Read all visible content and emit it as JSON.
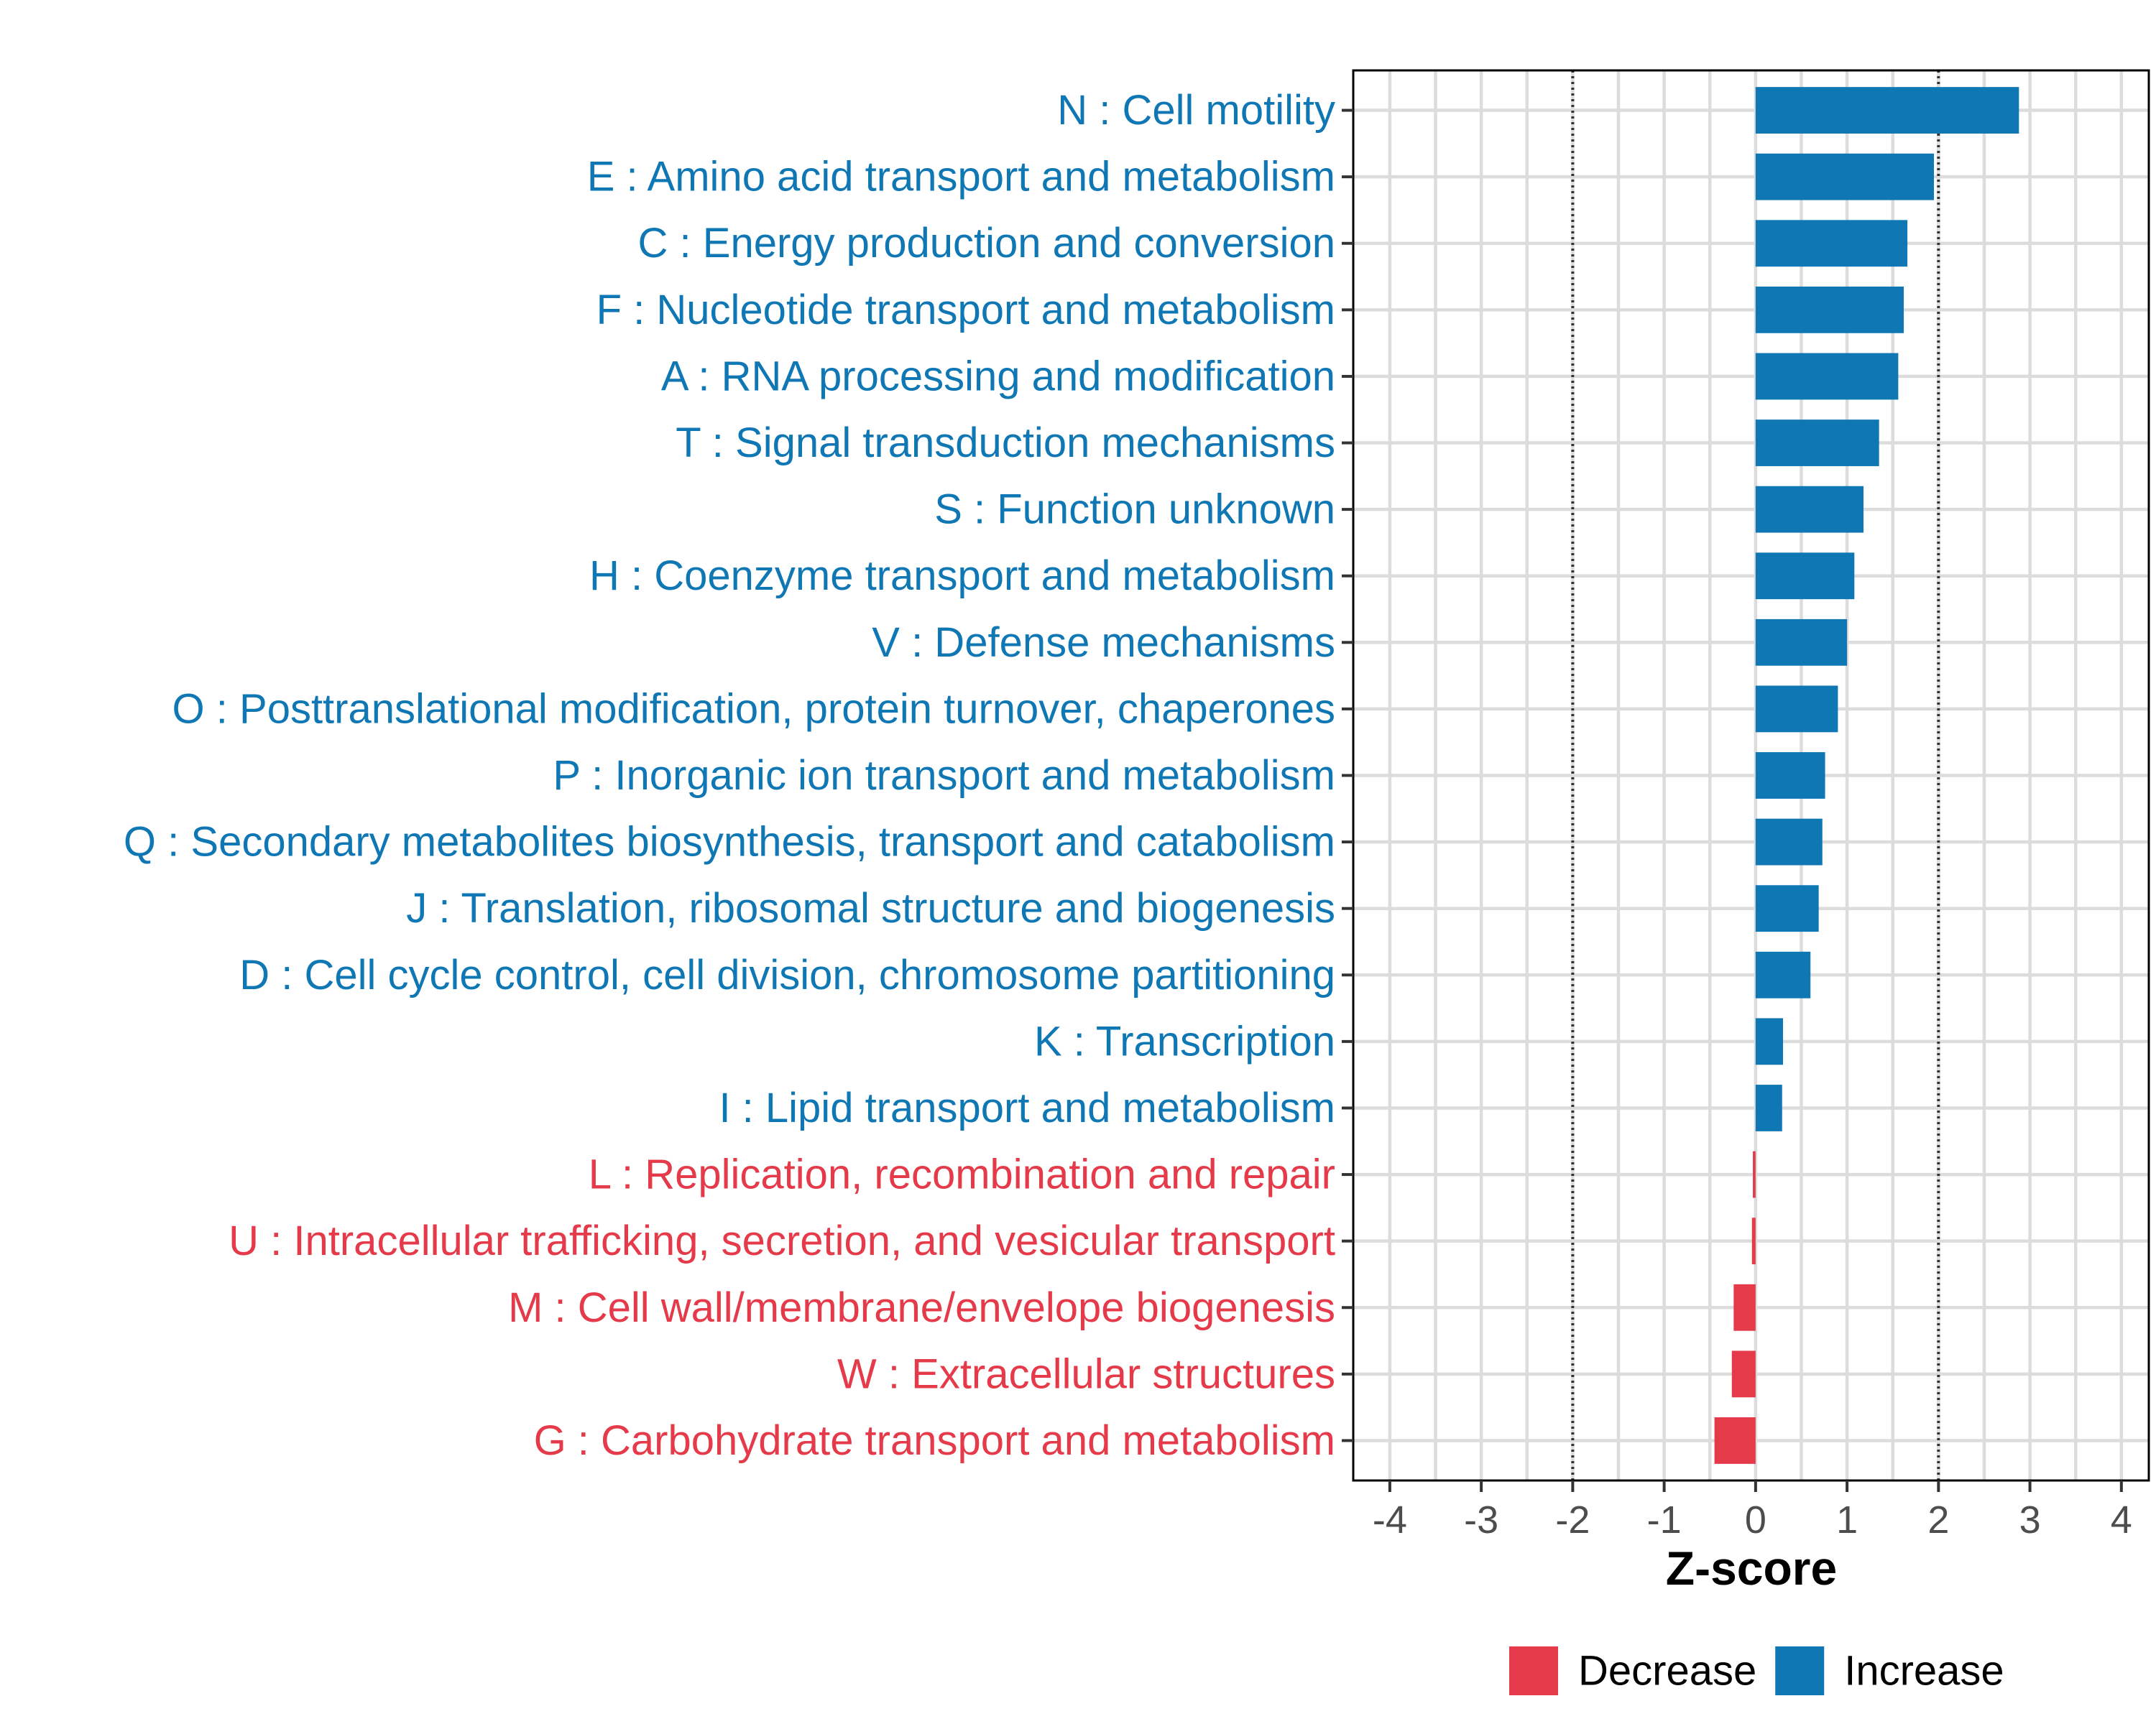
{
  "chart_data": {
    "type": "bar",
    "orientation": "horizontal",
    "title": "",
    "xlabel": "Z-score",
    "ylabel": "",
    "xlim": [
      -4.4,
      4.3
    ],
    "xticks": [
      -4,
      -3,
      -2,
      -1,
      0,
      1,
      2,
      3,
      4
    ],
    "xtick_labels": [
      "-4",
      "-3",
      "-2",
      "-1",
      "0",
      "1",
      "2",
      "3",
      "4"
    ],
    "grid": true,
    "reference_lines": [
      -2,
      2
    ],
    "colors": {
      "Increase": "#0f77b4",
      "Decrease": "#e53a49"
    },
    "legend": {
      "position": "bottom",
      "entries": [
        {
          "label": "Decrease",
          "color": "#e53a49"
        },
        {
          "label": "Increase",
          "color": "#0f77b4"
        }
      ]
    },
    "categories": [
      "N : Cell motility",
      "E : Amino acid transport and metabolism",
      "C : Energy production and conversion",
      "F : Nucleotide transport and metabolism",
      "A : RNA processing and modification",
      "T : Signal transduction mechanisms",
      "S : Function unknown",
      "H : Coenzyme transport and metabolism",
      "V : Defense mechanisms",
      "O : Posttranslational modification, protein turnover, chaperones",
      "P : Inorganic ion transport and metabolism",
      "Q : Secondary metabolites biosynthesis, transport and catabolism",
      "J : Translation, ribosomal structure and biogenesis",
      "D : Cell cycle control, cell division, chromosome partitioning",
      "K : Transcription",
      "I : Lipid transport and metabolism",
      "L : Replication, recombination and repair",
      "U : Intracellular trafficking, secretion, and vesicular transport",
      "M : Cell wall/membrane/envelope biogenesis",
      "W : Extracellular structures",
      "G : Carbohydrate transport and metabolism"
    ],
    "values": [
      2.88,
      1.95,
      1.66,
      1.62,
      1.56,
      1.35,
      1.18,
      1.08,
      1.0,
      0.9,
      0.76,
      0.73,
      0.69,
      0.6,
      0.3,
      0.29,
      -0.03,
      -0.04,
      -0.24,
      -0.26,
      -0.45
    ],
    "direction": [
      "Increase",
      "Increase",
      "Increase",
      "Increase",
      "Increase",
      "Increase",
      "Increase",
      "Increase",
      "Increase",
      "Increase",
      "Increase",
      "Increase",
      "Increase",
      "Increase",
      "Increase",
      "Increase",
      "Decrease",
      "Decrease",
      "Decrease",
      "Decrease",
      "Decrease"
    ]
  }
}
